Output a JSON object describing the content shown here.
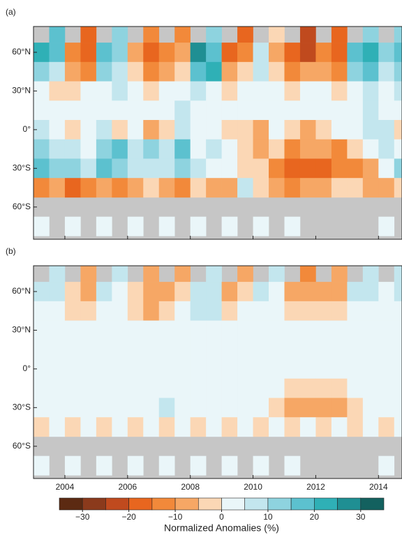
{
  "chart_data": [
    {
      "type": "heatmap",
      "panel_label": "(a)",
      "x": [
        2003,
        2003.5,
        2004,
        2004.5,
        2005,
        2005.5,
        2006,
        2006.5,
        2007,
        2007.5,
        2008,
        2008.5,
        2009,
        2009.5,
        2010,
        2010.5,
        2011,
        2011.5,
        2012,
        2012.5,
        2013,
        2013.5,
        2014,
        2014.5
      ],
      "y": [
        75,
        60,
        45,
        30,
        15,
        0,
        -15,
        -30,
        -45,
        -60,
        -75
      ],
      "values": [
        [
          null,
          15,
          null,
          -20,
          null,
          10,
          null,
          -15,
          null,
          -15,
          null,
          10,
          null,
          -20,
          null,
          -5,
          null,
          -25,
          null,
          -20,
          null,
          10,
          null,
          10
        ],
        [
          20,
          15,
          -15,
          -20,
          15,
          10,
          -10,
          -20,
          -15,
          -10,
          25,
          15,
          -20,
          -15,
          5,
          -10,
          -20,
          -25,
          -15,
          -20,
          15,
          20,
          10,
          15
        ],
        [
          10,
          5,
          -10,
          -15,
          10,
          5,
          -5,
          -15,
          -10,
          -5,
          15,
          20,
          -10,
          -5,
          5,
          -5,
          -15,
          -10,
          -10,
          -15,
          10,
          15,
          5,
          10
        ],
        [
          0,
          -5,
          -5,
          0,
          0,
          5,
          0,
          -5,
          0,
          0,
          5,
          0,
          -5,
          0,
          0,
          0,
          -5,
          0,
          0,
          -5,
          0,
          5,
          0,
          5
        ],
        [
          0,
          0,
          0,
          0,
          0,
          0,
          0,
          0,
          0,
          5,
          0,
          0,
          0,
          0,
          0,
          0,
          0,
          0,
          0,
          0,
          0,
          5,
          0,
          0
        ],
        [
          5,
          0,
          -5,
          0,
          5,
          -5,
          0,
          -10,
          -5,
          5,
          0,
          0,
          -5,
          -5,
          -10,
          0,
          -5,
          -10,
          -5,
          0,
          0,
          5,
          5,
          -5
        ],
        [
          10,
          5,
          5,
          0,
          10,
          15,
          5,
          10,
          5,
          15,
          0,
          5,
          0,
          -5,
          -10,
          -5,
          -15,
          -10,
          -10,
          -15,
          -5,
          0,
          5,
          0
        ],
        [
          15,
          10,
          10,
          5,
          15,
          10,
          5,
          5,
          5,
          10,
          5,
          0,
          0,
          -5,
          -5,
          -15,
          -20,
          -20,
          -20,
          -15,
          -15,
          -10,
          0,
          10
        ],
        [
          -15,
          -10,
          -20,
          -15,
          -10,
          -15,
          -10,
          -5,
          -10,
          -15,
          -5,
          -10,
          -10,
          5,
          -5,
          -10,
          -15,
          -10,
          -10,
          -5,
          -5,
          -10,
          -10,
          -5
        ],
        [
          null,
          null,
          null,
          null,
          null,
          null,
          null,
          null,
          null,
          null,
          null,
          null,
          null,
          null,
          null,
          null,
          null,
          null,
          null,
          null,
          null,
          null,
          null,
          null
        ],
        [
          0,
          null,
          0,
          null,
          0,
          null,
          0,
          null,
          0,
          null,
          0,
          null,
          0,
          null,
          0,
          null,
          0,
          null,
          null,
          null,
          null,
          null,
          0,
          null
        ]
      ],
      "xlim": [
        2003,
        2014.75
      ],
      "ylim": [
        -85,
        80
      ],
      "xticks": [
        2004,
        2006,
        2008,
        2010,
        2012,
        2014
      ],
      "yticks": [
        {
          "value": 60,
          "label": "60°N"
        },
        {
          "value": 30,
          "label": "30°N"
        },
        {
          "value": 0,
          "label": "0°"
        },
        {
          "value": -30,
          "label": "30°S"
        },
        {
          "value": -60,
          "label": "60°S"
        }
      ]
    },
    {
      "type": "heatmap",
      "panel_label": "(b)",
      "x": [
        2003,
        2003.5,
        2004,
        2004.5,
        2005,
        2005.5,
        2006,
        2006.5,
        2007,
        2007.5,
        2008,
        2008.5,
        2009,
        2009.5,
        2010,
        2010.5,
        2011,
        2011.5,
        2012,
        2012.5,
        2013,
        2013.5,
        2014,
        2014.5
      ],
      "y": [
        75,
        60,
        45,
        30,
        15,
        0,
        -15,
        -30,
        -45,
        -60,
        -75
      ],
      "values": [
        [
          null,
          5,
          null,
          -10,
          null,
          5,
          null,
          -10,
          null,
          -10,
          null,
          5,
          null,
          -10,
          null,
          5,
          null,
          -15,
          null,
          -10,
          null,
          5,
          null,
          5
        ],
        [
          5,
          5,
          -5,
          -10,
          5,
          0,
          -5,
          -10,
          -10,
          -5,
          5,
          5,
          -10,
          -5,
          5,
          0,
          -10,
          -10,
          -10,
          -10,
          5,
          5,
          0,
          5
        ],
        [
          0,
          0,
          -5,
          -5,
          0,
          0,
          -5,
          -10,
          -5,
          0,
          5,
          5,
          -5,
          0,
          0,
          0,
          -5,
          -5,
          -5,
          -5,
          0,
          0,
          0,
          0
        ],
        [
          0,
          0,
          0,
          0,
          0,
          0,
          0,
          0,
          0,
          0,
          0,
          0,
          0,
          0,
          0,
          0,
          0,
          0,
          0,
          0,
          0,
          0,
          0,
          0
        ],
        [
          0,
          0,
          0,
          0,
          0,
          0,
          0,
          0,
          0,
          0,
          0,
          0,
          0,
          0,
          0,
          0,
          0,
          0,
          0,
          0,
          0,
          0,
          0,
          0
        ],
        [
          0,
          0,
          0,
          0,
          0,
          0,
          0,
          0,
          0,
          0,
          0,
          0,
          0,
          0,
          0,
          0,
          0,
          0,
          0,
          0,
          0,
          0,
          0,
          0
        ],
        [
          0,
          0,
          0,
          0,
          0,
          0,
          0,
          0,
          0,
          0,
          0,
          0,
          0,
          0,
          0,
          0,
          -5,
          -5,
          -5,
          -5,
          0,
          0,
          0,
          0
        ],
        [
          0,
          0,
          0,
          0,
          0,
          0,
          0,
          0,
          5,
          0,
          0,
          0,
          0,
          0,
          0,
          -5,
          -10,
          -10,
          -10,
          -10,
          -5,
          0,
          0,
          0
        ],
        [
          -5,
          0,
          -5,
          0,
          -5,
          0,
          -5,
          0,
          -5,
          0,
          -5,
          0,
          -5,
          0,
          -5,
          0,
          -5,
          0,
          -5,
          0,
          -5,
          0,
          -5,
          0
        ],
        [
          null,
          null,
          null,
          null,
          null,
          null,
          null,
          null,
          null,
          null,
          null,
          null,
          null,
          null,
          null,
          null,
          null,
          null,
          null,
          null,
          null,
          null,
          null,
          null
        ],
        [
          0,
          null,
          0,
          null,
          0,
          null,
          0,
          null,
          0,
          null,
          0,
          null,
          0,
          null,
          0,
          null,
          0,
          null,
          null,
          null,
          null,
          null,
          0,
          null
        ]
      ],
      "xlim": [
        2003,
        2014.75
      ],
      "ylim": [
        -85,
        80
      ],
      "xticks": [
        2004,
        2006,
        2008,
        2010,
        2012,
        2014
      ],
      "yticks": [
        {
          "value": 60,
          "label": "60°N"
        },
        {
          "value": 30,
          "label": "30°N"
        },
        {
          "value": 0,
          "label": "0°"
        },
        {
          "value": -30,
          "label": "30°S"
        },
        {
          "value": -60,
          "label": "60°S"
        }
      ],
      "colorbar": {
        "label": "Normalized Anomalies (%)",
        "levels": [
          -35,
          -30,
          -25,
          -20,
          -15,
          -10,
          -5,
          0,
          5,
          10,
          15,
          20,
          25,
          30,
          35
        ],
        "colors": [
          "#5c2a12",
          "#8b3a1c",
          "#c04a1e",
          "#e8661f",
          "#f2893a",
          "#f6a765",
          "#fbd7b5",
          "#eaf6f9",
          "#c3e6ee",
          "#8ed3df",
          "#5cc1cf",
          "#2fb0b6",
          "#1f8f93",
          "#13615f"
        ],
        "ticks": [
          {
            "value": -30,
            "label": "−30"
          },
          {
            "value": -20,
            "label": "−20"
          },
          {
            "value": -10,
            "label": "−10"
          },
          0,
          10,
          20,
          30
        ]
      }
    }
  ]
}
